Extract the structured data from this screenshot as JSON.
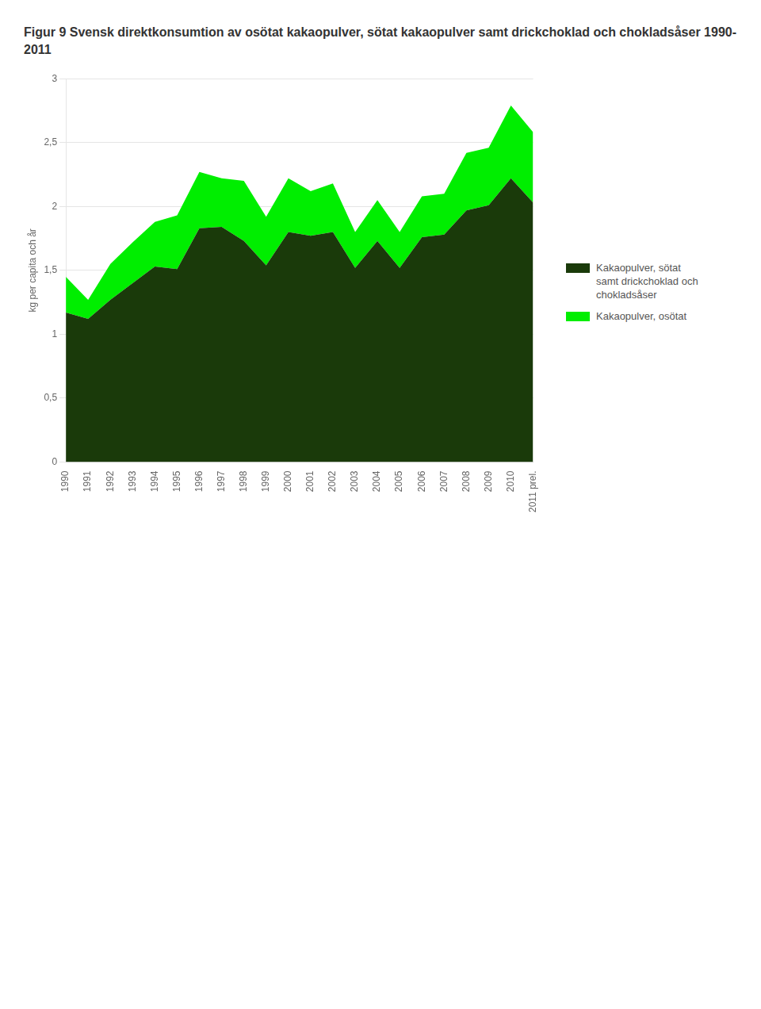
{
  "chart_data": {
    "type": "area",
    "stacked": true,
    "title": "Figur 9 Svensk direktkonsumtion av osötat kakaopulver, sötat kakaopulver samt drickchoklad och chokladsåser 1990-2011",
    "y_label": "kg per capita och år",
    "categories": [
      "1990",
      "1991",
      "1992",
      "1993",
      "1994",
      "1995",
      "1996",
      "1997",
      "1998",
      "1999",
      "2000",
      "2001",
      "2002",
      "2003",
      "2004",
      "2005",
      "2006",
      "2007",
      "2008",
      "2009",
      "2010",
      "2011 prel."
    ],
    "series": [
      {
        "name": "Kakaopulver, sötat\nsamt drickchoklad och\nchokladsåser",
        "color": "#1a3a0a",
        "values": [
          1.17,
          1.12,
          1.27,
          1.4,
          1.53,
          1.51,
          1.83,
          1.84,
          1.73,
          1.54,
          1.8,
          1.77,
          1.8,
          1.52,
          1.73,
          1.52,
          1.76,
          1.78,
          1.97,
          2.01,
          2.22,
          2.03
        ]
      },
      {
        "name": "Kakaopulver, osötat",
        "color": "#00ee00",
        "values": [
          0.28,
          0.15,
          0.28,
          0.32,
          0.35,
          0.42,
          0.44,
          0.38,
          0.47,
          0.38,
          0.42,
          0.35,
          0.38,
          0.28,
          0.32,
          0.28,
          0.32,
          0.32,
          0.45,
          0.45,
          0.57,
          0.55
        ]
      }
    ],
    "ylim": [
      0,
      3
    ],
    "yticks": [
      0,
      {
        "value": 0.5,
        "label": "0,5"
      },
      1,
      {
        "value": 1.5,
        "label": "1,5"
      },
      2,
      {
        "value": 2.5,
        "label": "2,5"
      },
      3
    ],
    "grid": true,
    "legend": "right"
  }
}
